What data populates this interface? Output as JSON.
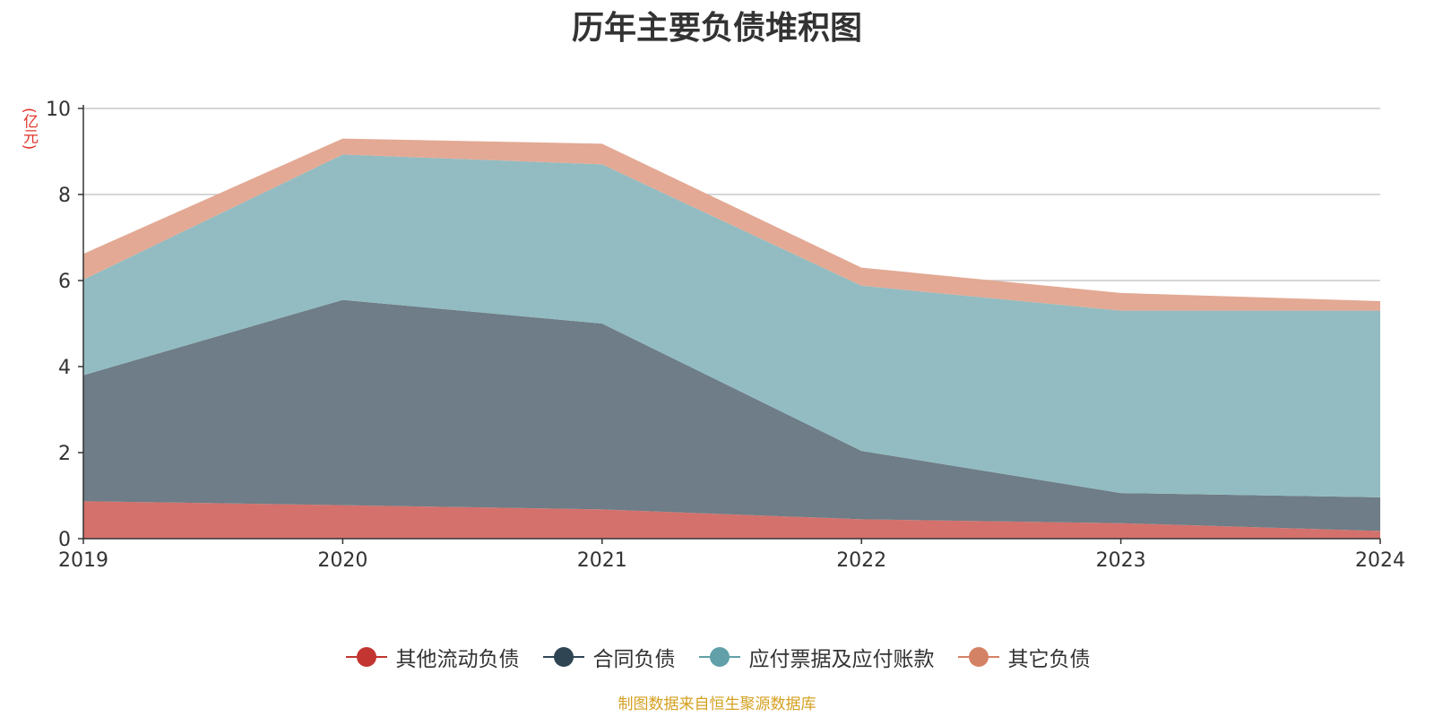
{
  "chart_data": {
    "type": "area",
    "title": "历年主要负债堆积图",
    "unit": "(亿元)",
    "x": [
      "2019",
      "2020",
      "2021",
      "2022",
      "2023",
      "2024"
    ],
    "ylim": [
      0,
      10
    ],
    "yticks": [
      "0",
      "2",
      "4",
      "6",
      "8",
      "10"
    ],
    "stacked": true,
    "grid": true,
    "legend_position": "bottom",
    "series": [
      {
        "name": "其他流动负债",
        "values": [
          0.87,
          0.78,
          0.68,
          0.45,
          0.36,
          0.18
        ],
        "color": "#c23531",
        "fill": "#d4716c"
      },
      {
        "name": "合同负债",
        "values": [
          2.93,
          4.77,
          4.32,
          1.59,
          0.7,
          0.78
        ],
        "color": "#2f4554",
        "fill": "#6e7d87"
      },
      {
        "name": "应付票据及应付账款",
        "values": [
          2.22,
          3.38,
          3.7,
          3.84,
          4.24,
          4.34
        ],
        "color": "#61a0a8",
        "fill": "#92bcc2"
      },
      {
        "name": "其它负债",
        "values": [
          0.6,
          0.37,
          0.48,
          0.42,
          0.41,
          0.22
        ],
        "color": "#d48265",
        "fill": "#e3a994"
      }
    ]
  },
  "source": "制图数据来自恒生聚源数据库"
}
